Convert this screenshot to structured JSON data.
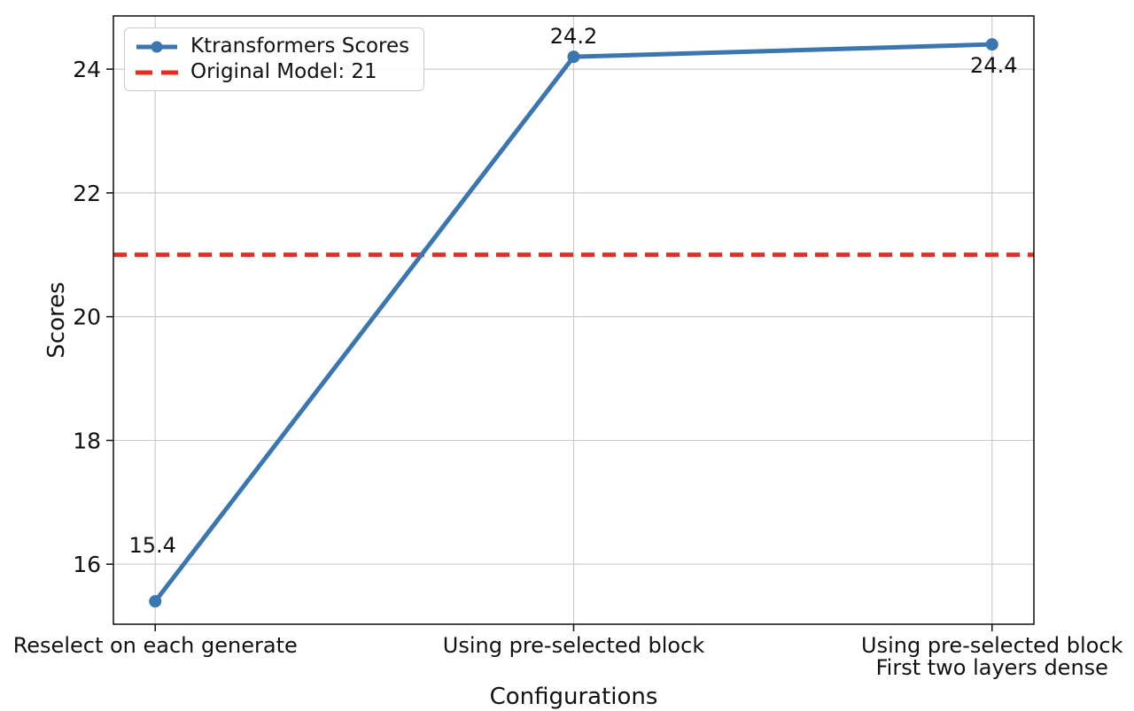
{
  "chart_data": {
    "type": "line",
    "title": "",
    "xlabel": "Configurations",
    "ylabel": "Scores",
    "categories": [
      "Reselect on each generate",
      "Using pre-selected block",
      "Using pre-selected block\nFirst two layers dense"
    ],
    "series": [
      {
        "name": "Ktransformers Scores",
        "values": [
          15.4,
          24.2,
          24.4
        ],
        "color": "#3b76b0",
        "marker": "circle",
        "line_style": "solid"
      }
    ],
    "reference_line": {
      "name": "Original Model: 21",
      "value": 21,
      "color": "#e42d22",
      "line_style": "dashed"
    },
    "annotations": [
      "15.4",
      "24.2",
      "24.4"
    ],
    "yticks": [
      "16",
      "18",
      "20",
      "22",
      "24"
    ],
    "ytick_values": [
      16,
      18,
      20,
      22,
      24
    ],
    "ylim": [
      15.03,
      24.86
    ],
    "grid": true,
    "legend_position": "upper left",
    "legend": [
      "Ktransformers Scores",
      "Original Model: 21"
    ]
  },
  "colors": {
    "series_blue": "#3b76b0",
    "reference_red": "#e42d22",
    "grid": "#cccccc",
    "axis": "#1a1a1a",
    "text": "#111111",
    "background": "#ffffff"
  }
}
